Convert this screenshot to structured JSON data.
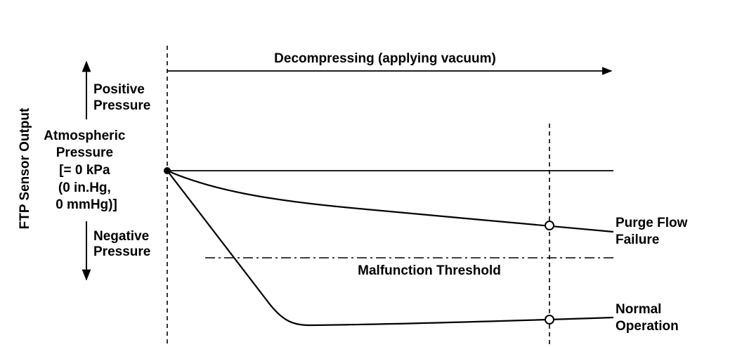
{
  "y_axis_label": "FTP Sensor Output",
  "time_arrow_label": "Decompressing (applying vacuum)",
  "positive_pressure": [
    "Positive",
    "Pressure"
  ],
  "atmospheric_pressure": [
    "Atmospheric",
    "Pressure",
    "[= 0 kPa",
    "(0 in.Hg,",
    "0 mmHg)]"
  ],
  "negative_pressure": [
    "Negative",
    "Pressure"
  ],
  "malfunction_threshold": "Malfunction Threshold",
  "purge_flow_failure": [
    "Purge Flow",
    "Failure"
  ],
  "normal_operation": [
    "Normal",
    "Operation"
  ],
  "colors": {
    "ink": "#000000",
    "background": "#ffffff"
  }
}
